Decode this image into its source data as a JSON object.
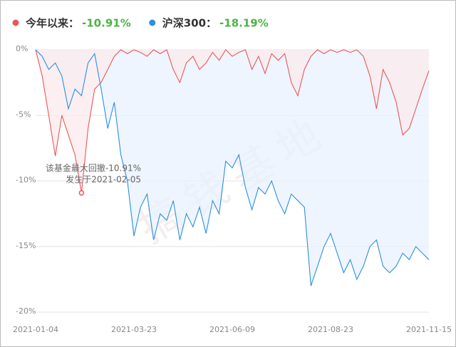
{
  "chart_data": {
    "type": "line",
    "watermark": "搞钱基地",
    "categories": [
      "2021-01-04",
      null,
      null,
      null,
      null,
      null,
      null,
      null,
      null,
      null,
      null,
      null,
      null,
      null,
      null,
      "2021-03-23",
      null,
      null,
      null,
      null,
      null,
      null,
      null,
      null,
      null,
      null,
      null,
      null,
      null,
      null,
      "2021-06-09",
      null,
      null,
      null,
      null,
      null,
      null,
      null,
      null,
      null,
      null,
      null,
      null,
      null,
      null,
      "2021-08-23",
      null,
      null,
      null,
      null,
      null,
      null,
      null,
      null,
      null,
      null,
      null,
      null,
      null,
      null,
      "2021-11-15"
    ],
    "series": [
      {
        "name": "今年以来：",
        "color": "#e8585a",
        "fill": "#fbe9ec",
        "summary": {
          "value": -10.91,
          "label": "-10.91%"
        },
        "values": [
          0,
          -2,
          -5,
          -8.1,
          -5,
          -6.5,
          -8,
          -10.91,
          -6,
          -3,
          -2.5,
          -1.5,
          -0.5,
          0,
          -0.3,
          0,
          -0.2,
          -0.5,
          0,
          -0.3,
          0,
          -1.5,
          -2.5,
          -1,
          -0.5,
          -1.5,
          -1,
          -0.2,
          -0.8,
          0,
          -0.5,
          -0.2,
          0,
          -1.5,
          -0.5,
          -1.8,
          -0.3,
          -0.8,
          -0.3,
          -2.5,
          -3.5,
          -1.5,
          -0.5,
          0,
          -0.3,
          0,
          -0.2,
          0,
          -0.2,
          0,
          -0.5,
          -2,
          -4.5,
          -1.5,
          -2.5,
          -4,
          -6.5,
          -6,
          -4.5,
          -3,
          -1.6
        ]
      },
      {
        "name": "沪深300：",
        "color": "#2c8fe0",
        "fill": "#e8f2fd",
        "summary": {
          "value": -18.19,
          "label": "-18.19%"
        },
        "values": [
          0,
          -0.5,
          -1.5,
          -1,
          -2,
          -4.5,
          -3,
          -3.5,
          -1,
          -0.3,
          -3,
          -6,
          -4,
          -8,
          -10,
          -14.2,
          -12,
          -11,
          -14.5,
          -12.5,
          -13,
          -11.5,
          -14.5,
          -12.5,
          -13.5,
          -12,
          -14,
          -11.5,
          -12.5,
          -8.5,
          -9,
          -8,
          -10.5,
          -12.2,
          -10.5,
          -11,
          -10,
          -11.5,
          -12.5,
          -11,
          -11.5,
          -12,
          -18,
          -16.5,
          -15,
          -14,
          -15.5,
          -17,
          -16,
          -17.5,
          -16.5,
          -15,
          -14.5,
          -16.5,
          -17,
          -16.5,
          -15.5,
          -16,
          -15,
          -15.5,
          -16
        ]
      }
    ],
    "summary_color": "#4cb444",
    "annotation": {
      "point": {
        "series": 0,
        "index": 7
      },
      "lines": [
        "该基金最大回撤-10.91%",
        "发生于2021-02-05"
      ]
    },
    "ylim": [
      -20,
      0
    ],
    "yticks": [
      {
        "value": 0,
        "label": "0%"
      },
      {
        "value": -5,
        "label": "-5%"
      },
      {
        "value": -10,
        "label": "-10%"
      },
      {
        "value": -15,
        "label": "-15%"
      },
      {
        "value": -20,
        "label": "-20%"
      }
    ],
    "grid": true
  }
}
